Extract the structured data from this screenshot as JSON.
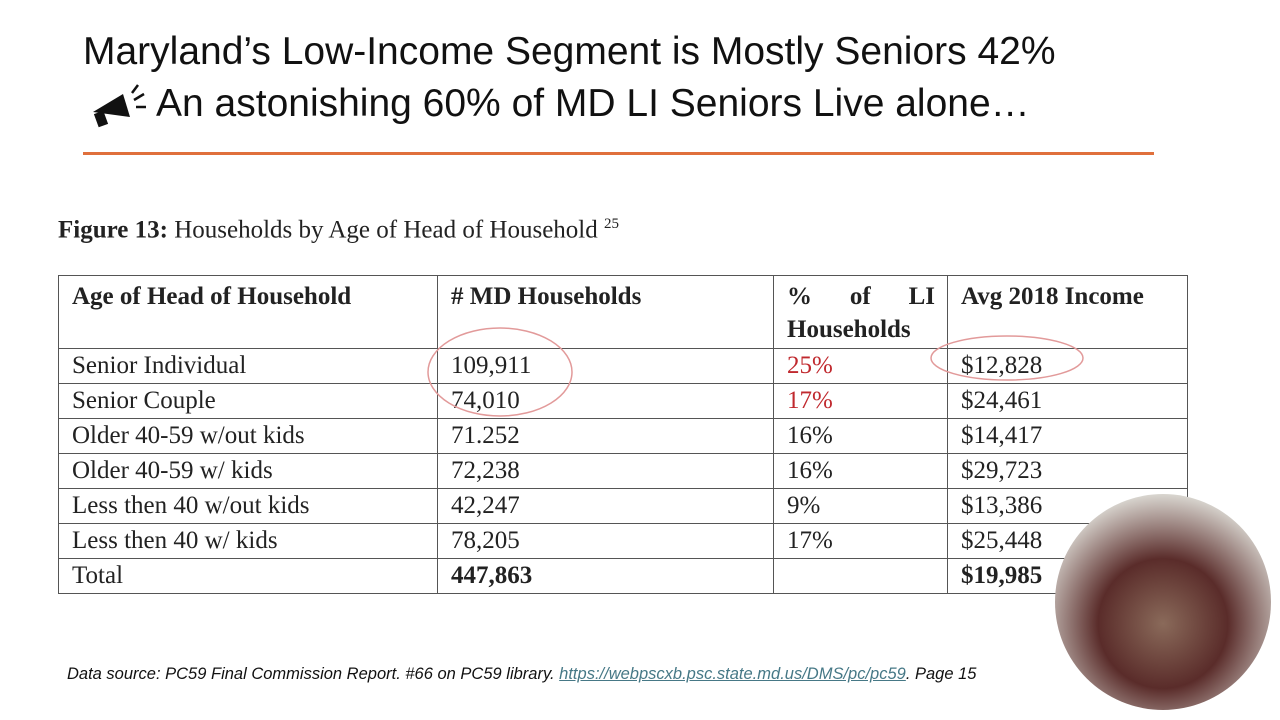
{
  "title": {
    "line1": "Maryland’s Low-Income Segment is Mostly Seniors 42%",
    "line2": "An astonishing 60% of MD LI Seniors Live alone…"
  },
  "figure": {
    "label": "Figure 13:",
    "caption": "Households by Age of Head of Household",
    "note": "25"
  },
  "table": {
    "header": [
      "Age of Head of Household",
      "# MD Households",
      "% of LI Households",
      "Avg 2018 Income"
    ],
    "rows": [
      [
        "Senior Individual",
        "109,911",
        "25%",
        "$12,828"
      ],
      [
        "Senior Couple",
        "74,010",
        "17%",
        "$24,461"
      ],
      [
        "Older 40-59 w/out kids",
        "71.252",
        "16%",
        "$14,417"
      ],
      [
        "Older 40-59 w/ kids",
        "72,238",
        "16%",
        "$29,723"
      ],
      [
        "Less then 40 w/out kids",
        "42,247",
        "9%",
        "$13,386"
      ],
      [
        "Less then 40 w/ kids",
        "78,205",
        "17%",
        "$25,448"
      ]
    ],
    "total": {
      "label": "Total",
      "households": "447,863",
      "income": "$19,985"
    }
  },
  "source": {
    "prefix": "Data source: PC59 Final Commission Report. #66 on PC59 library.",
    "link": "https://webpscxb.psc.state.md.us/DMS/pc/pc59",
    "suffix": ". Page 15"
  }
}
